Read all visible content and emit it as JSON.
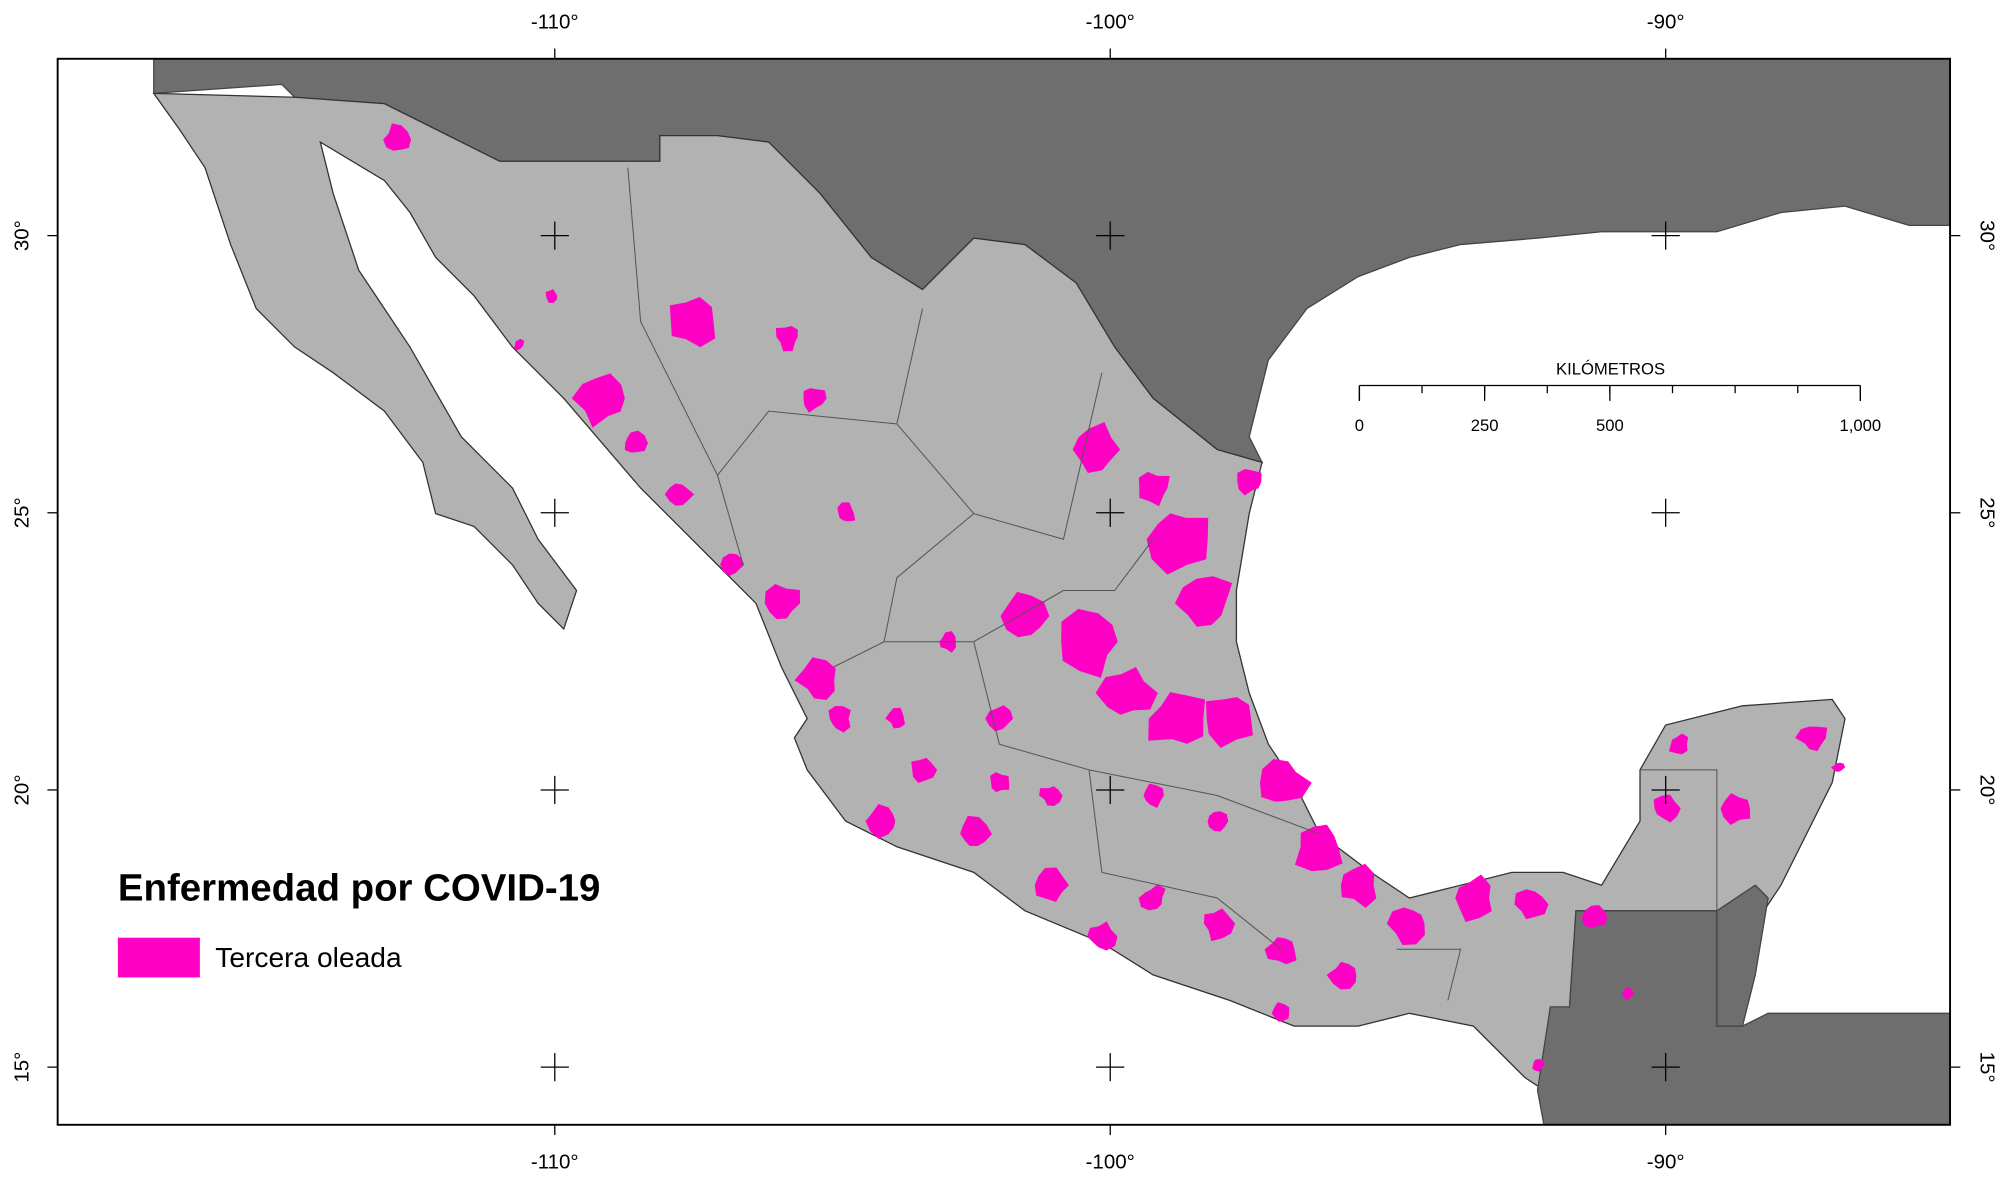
{
  "map": {
    "legend": {
      "title": "Enfermedad por COVID-19",
      "items": [
        {
          "label": "Tercera oleada",
          "color": "#ff00c5"
        }
      ]
    },
    "colors": {
      "mexico": "#b2b2b2",
      "neighbors": "#6e6e6e",
      "water": "#ffffff"
    },
    "lon_range": [
      -118.95,
      -84.88
    ],
    "lat_range": [
      13.96,
      33.19
    ],
    "lon_ticks": [
      {
        "value": -110,
        "label": "-110°"
      },
      {
        "value": -100,
        "label": "-100°"
      },
      {
        "value": -90,
        "label": "-90°"
      }
    ],
    "lat_ticks": [
      {
        "value": 30,
        "label": "30°"
      },
      {
        "value": 25,
        "label": "25°"
      },
      {
        "value": 20,
        "label": "20°"
      },
      {
        "value": 15,
        "label": "15°"
      }
    ],
    "scale_bar": {
      "title": "KILÓMETROS",
      "ticks": [
        0,
        250,
        500,
        {
          "value": 1000,
          "label": "1,000"
        }
      ]
    }
  }
}
